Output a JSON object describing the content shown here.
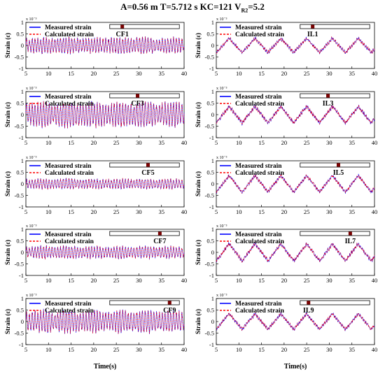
{
  "figure": {
    "title_parts": {
      "main": "A=0.56 m   T=5.712 s   KC=121   V",
      "sub": "R2",
      "tail": "=5.2"
    }
  },
  "chart_data": [
    {
      "type": "line",
      "id": "CF1",
      "sensor_label": "CF1",
      "ylabel": "Strain (ε)",
      "y_multiplier": "x 10⁻³",
      "xlim": [
        5,
        40
      ],
      "ylim": [
        -1,
        1
      ],
      "xticks": [
        5,
        10,
        15,
        20,
        25,
        30,
        35,
        40
      ],
      "yticks": [
        -1,
        -0.5,
        0,
        0.5,
        1
      ],
      "tick_labels_y": [
        "-1",
        "-0.5",
        "0",
        "0.5",
        "1"
      ],
      "series": [
        {
          "name": "Measured strain",
          "color": "#0000ff",
          "style": "solid"
        },
        {
          "name": "Calculated strain",
          "color": "#ff0000",
          "style": "dashed"
        }
      ],
      "pattern": {
        "kind": "cf",
        "amplitude": 0.32,
        "beat": 0.5
      },
      "sensor_position_fraction": 0.18
    },
    {
      "type": "line",
      "id": "IL1",
      "sensor_label": "IL1",
      "ylabel": "Strain (ε)",
      "y_multiplier": "x 10⁻³",
      "xlim": [
        5,
        40
      ],
      "ylim": [
        -1,
        1
      ],
      "xticks": [
        5,
        10,
        15,
        20,
        25,
        30,
        35,
        40
      ],
      "yticks": [
        -1,
        -0.5,
        0,
        0.5,
        1
      ],
      "tick_labels_y": [
        "-1",
        "-0.5",
        "0",
        "0.5",
        "1"
      ],
      "series": [
        {
          "name": "Measured strain",
          "color": "#0000ff",
          "style": "solid"
        },
        {
          "name": "Calculated strain",
          "color": "#ff0000",
          "style": "dashed"
        }
      ],
      "pattern": {
        "kind": "il",
        "amplitude": 0.35,
        "noise": 0.05
      },
      "sensor_position_fraction": 0.18
    },
    {
      "type": "line",
      "id": "CF3",
      "sensor_label": "CF3",
      "ylabel": "Strain (ε)",
      "y_multiplier": "x 10⁻³",
      "xlim": [
        5,
        40
      ],
      "ylim": [
        -1,
        1
      ],
      "xticks": [
        5,
        10,
        15,
        20,
        25,
        30,
        35,
        40
      ],
      "yticks": [
        -1,
        -0.5,
        0,
        0.5,
        1
      ],
      "tick_labels_y": [
        "-1",
        "-0.5",
        "0",
        "0.5",
        "1"
      ],
      "series": [
        {
          "name": "Measured strain",
          "color": "#0000ff",
          "style": "solid"
        },
        {
          "name": "Calculated strain",
          "color": "#ff0000",
          "style": "dashed"
        }
      ],
      "pattern": {
        "kind": "cf",
        "amplitude": 0.5,
        "beat": 0.6
      },
      "sensor_position_fraction": 0.4
    },
    {
      "type": "line",
      "id": "IL3",
      "sensor_label": "IL3",
      "ylabel": "Strain (ε)",
      "y_multiplier": "x 10⁻³",
      "xlim": [
        5,
        40
      ],
      "ylim": [
        -1,
        1
      ],
      "xticks": [
        5,
        10,
        15,
        20,
        25,
        30,
        35,
        40
      ],
      "yticks": [
        -1,
        -0.5,
        0,
        0.5,
        1
      ],
      "tick_labels_y": [
        "-1",
        "-0.5",
        "0",
        "0.5",
        "1"
      ],
      "series": [
        {
          "name": "Measured strain",
          "color": "#0000ff",
          "style": "solid"
        },
        {
          "name": "Calculated strain",
          "color": "#ff0000",
          "style": "dashed"
        }
      ],
      "pattern": {
        "kind": "il",
        "amplitude": 0.4,
        "noise": 0.06
      },
      "sensor_position_fraction": 0.4
    },
    {
      "type": "line",
      "id": "CF5",
      "sensor_label": "CF5",
      "ylabel": "Strain (ε)",
      "y_multiplier": "x 10⁻³",
      "xlim": [
        5,
        40
      ],
      "ylim": [
        -1,
        1
      ],
      "xticks": [
        5,
        10,
        15,
        20,
        25,
        30,
        35,
        40
      ],
      "yticks": [
        -1,
        -0.5,
        0,
        0.5,
        1
      ],
      "tick_labels_y": [
        "-1",
        "-0.5",
        "0",
        "0.5",
        "1"
      ],
      "series": [
        {
          "name": "Measured strain",
          "color": "#0000ff",
          "style": "solid"
        },
        {
          "name": "Calculated strain",
          "color": "#ff0000",
          "style": "dashed"
        }
      ],
      "pattern": {
        "kind": "cf",
        "amplitude": 0.2,
        "beat": 0.4
      },
      "sensor_position_fraction": 0.55
    },
    {
      "type": "line",
      "id": "IL5",
      "sensor_label": "IL5",
      "ylabel": "Strain (ε)",
      "y_multiplier": "x 10⁻³",
      "xlim": [
        5,
        40
      ],
      "ylim": [
        -1,
        1
      ],
      "xticks": [
        5,
        10,
        15,
        20,
        25,
        30,
        35,
        40
      ],
      "yticks": [
        -1,
        -0.5,
        0,
        0.5,
        1
      ],
      "tick_labels_y": [
        "-1",
        "-0.5",
        "0",
        "0.5",
        "1"
      ],
      "series": [
        {
          "name": "Measured strain",
          "color": "#0000ff",
          "style": "solid"
        },
        {
          "name": "Calculated strain",
          "color": "#ff0000",
          "style": "dashed"
        }
      ],
      "pattern": {
        "kind": "il",
        "amplitude": 0.4,
        "noise": 0.05
      },
      "sensor_position_fraction": 0.55
    },
    {
      "type": "line",
      "id": "CF7",
      "sensor_label": "CF7",
      "ylabel": "Strain (ε)",
      "y_multiplier": "x 10⁻³",
      "xlim": [
        5,
        40
      ],
      "ylim": [
        -1,
        1
      ],
      "xticks": [
        5,
        10,
        15,
        20,
        25,
        30,
        35,
        40
      ],
      "yticks": [
        -1,
        -0.5,
        0,
        0.5,
        1
      ],
      "tick_labels_y": [
        "-1",
        "-0.5",
        "0",
        "0.5",
        "1"
      ],
      "series": [
        {
          "name": "Measured strain",
          "color": "#0000ff",
          "style": "solid"
        },
        {
          "name": "Calculated strain",
          "color": "#ff0000",
          "style": "dashed"
        }
      ],
      "pattern": {
        "kind": "cf",
        "amplitude": 0.25,
        "beat": 0.5
      },
      "sensor_position_fraction": 0.72
    },
    {
      "type": "line",
      "id": "IL7",
      "sensor_label": "IL7",
      "ylabel": "Strain (ε)",
      "y_multiplier": "x 10⁻³",
      "xlim": [
        5,
        40
      ],
      "ylim": [
        -1,
        1
      ],
      "xticks": [
        5,
        10,
        15,
        20,
        25,
        30,
        35,
        40
      ],
      "yticks": [
        -1,
        -0.5,
        0,
        0.5,
        1
      ],
      "tick_labels_y": [
        "-1",
        "-0.5",
        "0",
        "0.5",
        "1"
      ],
      "series": [
        {
          "name": "Measured strain",
          "color": "#0000ff",
          "style": "solid"
        },
        {
          "name": "Calculated strain",
          "color": "#ff0000",
          "style": "dashed"
        }
      ],
      "pattern": {
        "kind": "il",
        "amplitude": 0.42,
        "noise": 0.06
      },
      "sensor_position_fraction": 0.72
    },
    {
      "type": "line",
      "id": "CF9",
      "sensor_label": "CF9",
      "ylabel": "Strain (ε)",
      "y_multiplier": "x 10⁻³",
      "xlim": [
        5,
        40
      ],
      "ylim": [
        -1,
        1
      ],
      "xticks": [
        5,
        10,
        15,
        20,
        25,
        30,
        35,
        40
      ],
      "yticks": [
        -1,
        -0.5,
        0,
        0.5,
        1
      ],
      "tick_labels_y": [
        "-1",
        "-0.5",
        "0",
        "0.5",
        "1"
      ],
      "series": [
        {
          "name": "Measured strain",
          "color": "#0000ff",
          "style": "solid"
        },
        {
          "name": "Calculated strain",
          "color": "#ff0000",
          "style": "dashed"
        }
      ],
      "pattern": {
        "kind": "cf",
        "amplitude": 0.45,
        "beat": 0.6
      },
      "sensor_position_fraction": 0.86
    },
    {
      "type": "line",
      "id": "IL9",
      "sensor_label": "IL9",
      "ylabel": "Strain (ε)",
      "y_multiplier": "x 10⁻³",
      "xlim": [
        5,
        40
      ],
      "ylim": [
        -1,
        1
      ],
      "xticks": [
        5,
        10,
        15,
        20,
        25,
        30,
        35,
        40
      ],
      "yticks": [
        -1,
        -0.5,
        0,
        0.5,
        1
      ],
      "tick_labels_y": [
        "-1",
        "-0.5",
        "0",
        "0.5",
        "1"
      ],
      "series": [
        {
          "name": "Measured strain",
          "color": "#0000ff",
          "style": "solid"
        },
        {
          "name": "Calculated strain",
          "color": "#ff0000",
          "style": "dashed"
        }
      ],
      "pattern": {
        "kind": "il",
        "amplitude": 0.38,
        "noise": 0.05
      },
      "sensor_position_fraction": 0.12
    }
  ],
  "x_axis_label_left": "Time(s)",
  "x_axis_label_right": "Time(s)"
}
